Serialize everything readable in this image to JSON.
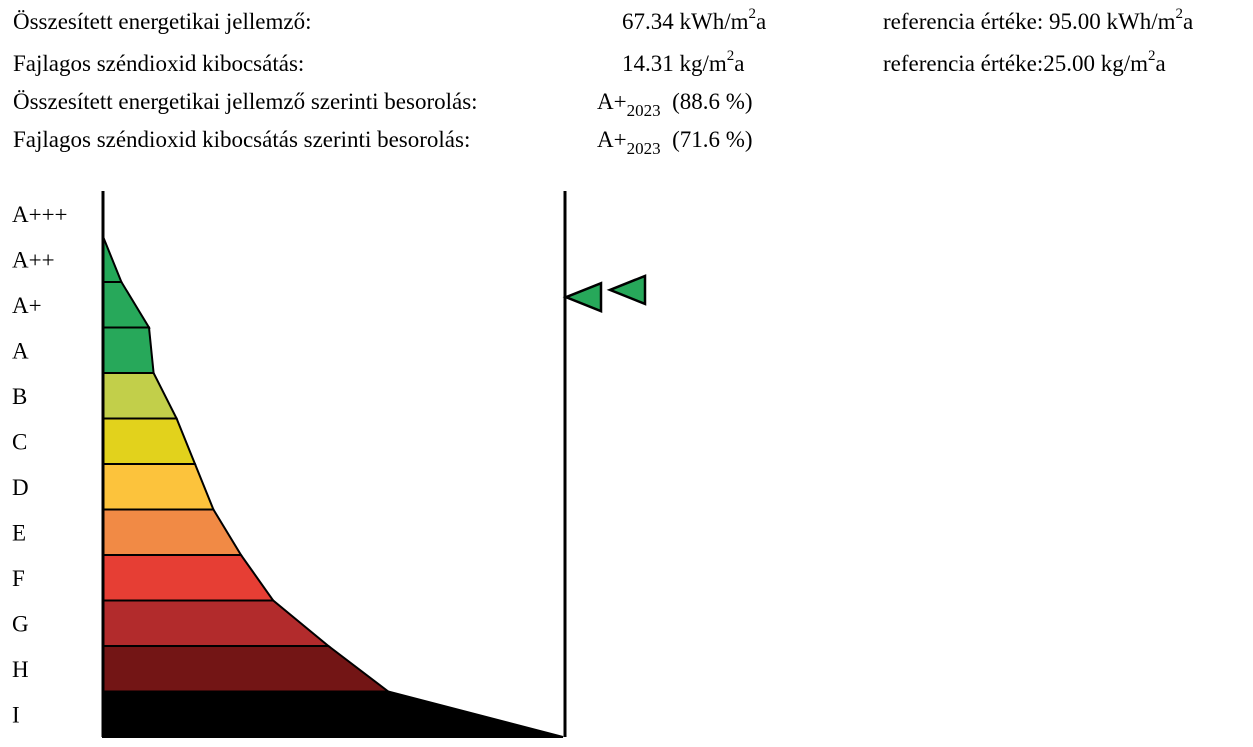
{
  "header": {
    "rows": [
      {
        "label": "Összesített energetikai jellemző:",
        "value": "67.34 kWh/m",
        "value_sup": "2",
        "value_tail": "a",
        "ref_prefix": "referencia értéke: ",
        "ref_value": "95.00 kWh/m",
        "ref_sup": "2",
        "ref_tail": "a"
      },
      {
        "label": "Fajlagos széndioxid kibocsátás:",
        "value": "14.31 kg/m",
        "value_sup": "2",
        "value_tail": "a",
        "ref_prefix": "referencia értéke:",
        "ref_value": "25.00 kg/m",
        "ref_sup": "2",
        "ref_tail": "a"
      },
      {
        "label": "Összesített energetikai jellemző szerinti besorolás:",
        "class": "A+",
        "class_sub": "2023",
        "percent": "(88.6 %)"
      },
      {
        "label": "Fajlagos széndioxid kibocsátás szerinti besorolás:",
        "class": "A+",
        "class_sub": "2023",
        "percent": "(71.6 %)"
      }
    ]
  },
  "chart_data": {
    "type": "bar",
    "orientation": "horizontal",
    "title": "",
    "categories": [
      "A+++",
      "A++",
      "A+",
      "A",
      "B",
      "C",
      "D",
      "E",
      "F",
      "G",
      "H",
      "I"
    ],
    "bar_lengths_relative": [
      0.0,
      0.04,
      0.1,
      0.11,
      0.16,
      0.2,
      0.24,
      0.3,
      0.37,
      0.49,
      0.62,
      1.0
    ],
    "colors": [
      "#23a858",
      "#23a858",
      "#27a85a",
      "#27a85a",
      "#c2cf4a",
      "#e2d21c",
      "#fcc33c",
      "#f18a45",
      "#e63e34",
      "#b22b2c",
      "#731515",
      "#000000"
    ],
    "markers": [
      {
        "name": "Összesített energetikai jellemző",
        "category": "A+",
        "percent": 88.6,
        "color": "#27a85a"
      },
      {
        "name": "Fajlagos széndioxid kibocsátás",
        "category": "A+",
        "percent": 71.6,
        "color": "#27a85a"
      }
    ],
    "legend": "none"
  }
}
